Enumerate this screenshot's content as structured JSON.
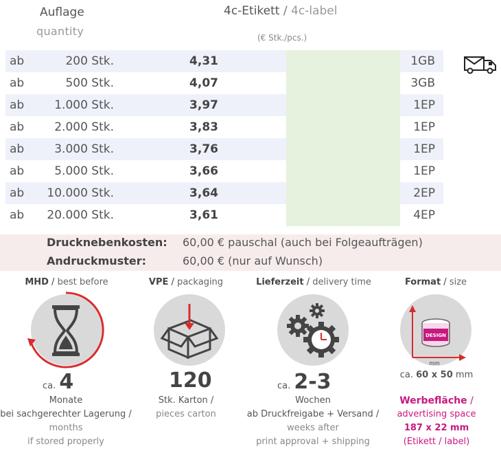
{
  "header": {
    "col1_de": "Auflage",
    "col1_en": "quantity",
    "col2_de": "4c-Etikett",
    "col2_sep": " / ",
    "col2_en": "4c-label",
    "unit": "(€ Stk./pcs.)"
  },
  "rows": [
    {
      "ab": "ab",
      "qty": "200 Stk.",
      "price": "4,31",
      "ship": "1GB"
    },
    {
      "ab": "ab",
      "qty": "500 Stk.",
      "price": "4,07",
      "ship": "3GB"
    },
    {
      "ab": "ab",
      "qty": "1.000 Stk.",
      "price": "3,97",
      "ship": "1EP"
    },
    {
      "ab": "ab",
      "qty": "2.000 Stk.",
      "price": "3,83",
      "ship": "1EP"
    },
    {
      "ab": "ab",
      "qty": "3.000 Stk.",
      "price": "3,76",
      "ship": "1EP"
    },
    {
      "ab": "ab",
      "qty": "5.000 Stk.",
      "price": "3,66",
      "ship": "1EP"
    },
    {
      "ab": "ab",
      "qty": "10.000 Stk.",
      "price": "3,64",
      "ship": "2EP"
    },
    {
      "ab": "ab",
      "qty": "20.000 Stk.",
      "price": "3,61",
      "ship": "4EP"
    }
  ],
  "icons": {
    "truck": "delivery-truck-icon",
    "hourglass": "hourglass-icon",
    "box": "box-icon",
    "gears": "gears-clock-icon",
    "format": "label-format-icon"
  },
  "costs": {
    "k1": "Drucknebenkosten:",
    "v1": "60,00 € pauschal (auch bei Folgeaufträgen)",
    "k2": "Andruckmuster:",
    "v2": "60,00 € (nur auf Wunsch)"
  },
  "mhd": {
    "title_de": "MHD",
    "title_en": "best before",
    "ca": "ca.",
    "value": "4",
    "l1": "Monate",
    "l2": "bei sachgerechter Lagerung /",
    "l3": "months",
    "l4": "if stored properly"
  },
  "vpe": {
    "title_de": "VPE",
    "title_en": "packaging",
    "value": "120",
    "l1": "Stk. Karton /",
    "l2": "pieces carton"
  },
  "liefer": {
    "title_de": "Lieferzeit",
    "title_en": "delivery time",
    "ca": "ca.",
    "value": "2-3",
    "l1": "Wochen",
    "l2": "ab Druckfreigabe + Versand /",
    "l3": "weeks after",
    "l4": "print approval + shipping"
  },
  "format": {
    "title_de": "Format",
    "title_en": "size",
    "mm_label": "mm",
    "design_label": "DESIGN",
    "ca": "ca.",
    "size": "60 x 50",
    "unit": "mm",
    "w1": "Werbefläche",
    "w1_sep": " /",
    "w2": "advertising space",
    "w3": "187 x 22 mm",
    "w4": "(Etikett / label)"
  },
  "colors": {
    "accent_red": "#d92b2b",
    "pink": "#c8197f",
    "row_shade": "#eef1f9",
    "green_col": "#e6f2de",
    "band": "#f7ecec"
  }
}
